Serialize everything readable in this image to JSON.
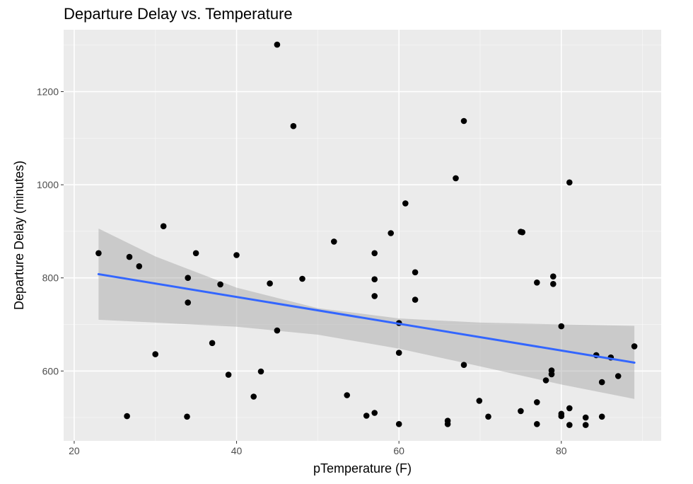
{
  "chart_data": {
    "type": "scatter",
    "title": "Departure Delay vs. Temperature",
    "xlabel": "pTemperature (F)",
    "ylabel": "Departure Delay (minutes)",
    "xlim": [
      18.7,
      92.3
    ],
    "ylim": [
      450,
      1333
    ],
    "x_ticks": [
      20,
      40,
      60,
      80
    ],
    "y_ticks": [
      600,
      800,
      1000,
      1200
    ],
    "grid": true,
    "legend": "none",
    "colors": {
      "panel_background": "#ebebeb",
      "grid_major": "#ffffff",
      "point": "#000000",
      "trend_line": "#3366ff",
      "confidence_band": "#999999"
    },
    "points": [
      {
        "x": 23.0,
        "y": 853
      },
      {
        "x": 26.5,
        "y": 503
      },
      {
        "x": 26.8,
        "y": 845
      },
      {
        "x": 28.0,
        "y": 825
      },
      {
        "x": 30.0,
        "y": 636
      },
      {
        "x": 31.0,
        "y": 911
      },
      {
        "x": 33.9,
        "y": 502
      },
      {
        "x": 34.0,
        "y": 800
      },
      {
        "x": 34.0,
        "y": 747
      },
      {
        "x": 35.0,
        "y": 853
      },
      {
        "x": 37.0,
        "y": 660
      },
      {
        "x": 38.0,
        "y": 786
      },
      {
        "x": 39.0,
        "y": 592
      },
      {
        "x": 40.0,
        "y": 849
      },
      {
        "x": 42.1,
        "y": 545
      },
      {
        "x": 43.0,
        "y": 599
      },
      {
        "x": 44.1,
        "y": 788
      },
      {
        "x": 45.0,
        "y": 1301
      },
      {
        "x": 45.0,
        "y": 687
      },
      {
        "x": 47.0,
        "y": 1126
      },
      {
        "x": 48.1,
        "y": 798
      },
      {
        "x": 52.0,
        "y": 878
      },
      {
        "x": 53.6,
        "y": 548
      },
      {
        "x": 56.0,
        "y": 504
      },
      {
        "x": 57.0,
        "y": 853
      },
      {
        "x": 57.0,
        "y": 797
      },
      {
        "x": 57.0,
        "y": 761
      },
      {
        "x": 57.0,
        "y": 510
      },
      {
        "x": 59.0,
        "y": 896
      },
      {
        "x": 60.0,
        "y": 703
      },
      {
        "x": 60.0,
        "y": 639
      },
      {
        "x": 60.0,
        "y": 486
      },
      {
        "x": 60.8,
        "y": 960
      },
      {
        "x": 62.0,
        "y": 812
      },
      {
        "x": 62.0,
        "y": 753
      },
      {
        "x": 66.0,
        "y": 493
      },
      {
        "x": 66.0,
        "y": 486
      },
      {
        "x": 67.0,
        "y": 1014
      },
      {
        "x": 68.0,
        "y": 1137
      },
      {
        "x": 68.0,
        "y": 613
      },
      {
        "x": 69.9,
        "y": 536
      },
      {
        "x": 71.0,
        "y": 502
      },
      {
        "x": 75.0,
        "y": 899
      },
      {
        "x": 75.2,
        "y": 898
      },
      {
        "x": 75.0,
        "y": 514
      },
      {
        "x": 77.0,
        "y": 790
      },
      {
        "x": 77.0,
        "y": 533
      },
      {
        "x": 77.0,
        "y": 486
      },
      {
        "x": 78.1,
        "y": 580
      },
      {
        "x": 78.8,
        "y": 601
      },
      {
        "x": 78.8,
        "y": 593
      },
      {
        "x": 79.0,
        "y": 803
      },
      {
        "x": 79.0,
        "y": 787
      },
      {
        "x": 80.0,
        "y": 696
      },
      {
        "x": 80.0,
        "y": 508
      },
      {
        "x": 80.0,
        "y": 503
      },
      {
        "x": 81.0,
        "y": 1005
      },
      {
        "x": 81.0,
        "y": 520
      },
      {
        "x": 81.0,
        "y": 484
      },
      {
        "x": 83.0,
        "y": 500
      },
      {
        "x": 83.0,
        "y": 484
      },
      {
        "x": 84.3,
        "y": 634
      },
      {
        "x": 85.0,
        "y": 576
      },
      {
        "x": 85.0,
        "y": 502
      },
      {
        "x": 86.1,
        "y": 629
      },
      {
        "x": 87.0,
        "y": 589
      },
      {
        "x": 89.0,
        "y": 653
      }
    ],
    "trend_line": {
      "method": "linear",
      "x": [
        23,
        89
      ],
      "y": [
        808,
        618
      ]
    },
    "confidence_band": {
      "x": [
        23,
        30,
        40,
        50,
        60,
        70,
        80,
        89
      ],
      "upper": [
        906,
        846,
        779,
        735,
        713,
        704,
        700,
        697
      ],
      "lower": [
        710,
        704,
        695,
        678,
        648,
        610,
        571,
        540
      ]
    }
  }
}
